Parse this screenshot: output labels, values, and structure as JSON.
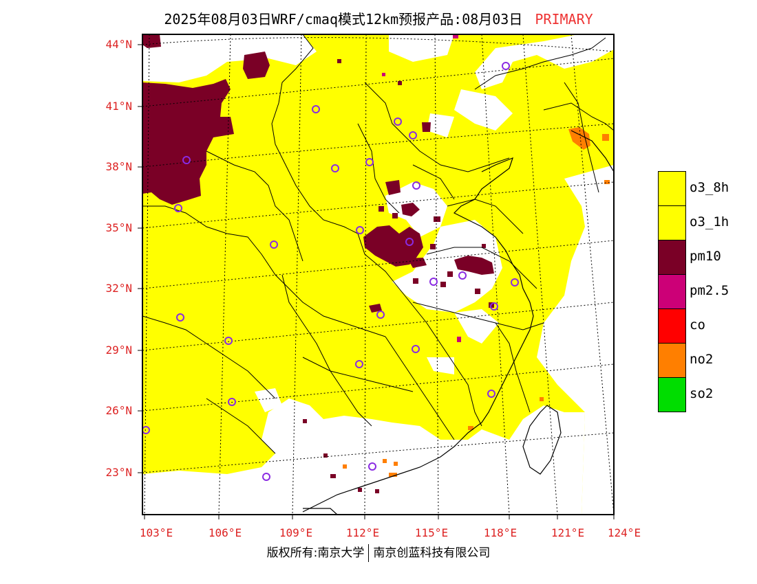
{
  "title": {
    "main": "2025年08月03日WRF/cmaq模式12km预报产品:08月03日",
    "tag": "PRIMARY"
  },
  "axes": {
    "lat_labels": [
      "44°N",
      "41°N",
      "38°N",
      "35°N",
      "32°N",
      "29°N",
      "26°N",
      "23°N"
    ],
    "lon_labels": [
      "103°E",
      "106°E",
      "109°E",
      "112°E",
      "115°E",
      "118°E",
      "121°E",
      "124°E"
    ]
  },
  "legend": [
    {
      "label": "o3_8h",
      "color": "#ffff00"
    },
    {
      "label": "o3_1h",
      "color": "#ffff00"
    },
    {
      "label": "pm10",
      "color": "#7a0026"
    },
    {
      "label": "pm2.5",
      "color": "#cc0077"
    },
    {
      "label": "co",
      "color": "#ff0000"
    },
    {
      "label": "no2",
      "color": "#ff7f00"
    },
    {
      "label": "so2",
      "color": "#00dd00"
    }
  ],
  "copyright": {
    "left": "版权所有:南京大学",
    "right": "南京创蓝科技有限公司"
  },
  "colors": {
    "background": "#ffffff",
    "axis_label": "#dd2222",
    "station_marker": "#8a2be2"
  }
}
